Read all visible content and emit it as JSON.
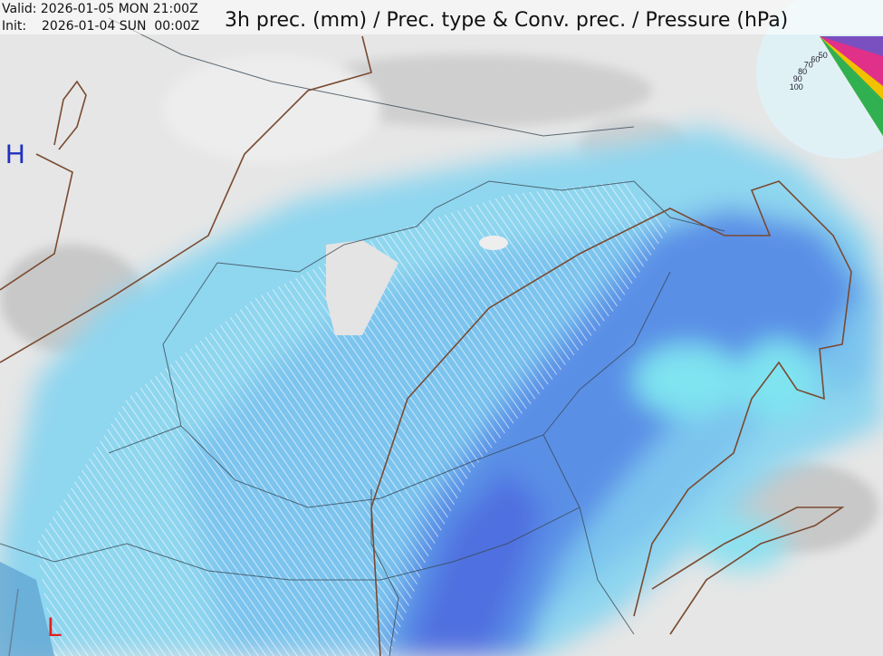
{
  "header": {
    "valid": "Valid: 2026-01-05 MON 21:00Z",
    "init_label": "Init:",
    "init": "2026-01-04 SUN  00:00Z",
    "title": "3h prec. (mm) / Prec. type & Conv. prec. / Pressure (hPa)"
  },
  "pressure_centers": [
    {
      "label": "H"
    },
    {
      "label": "L"
    }
  ],
  "legend": {
    "labels": [
      "100",
      "90",
      "80",
      "70",
      "60",
      "50"
    ]
  }
}
